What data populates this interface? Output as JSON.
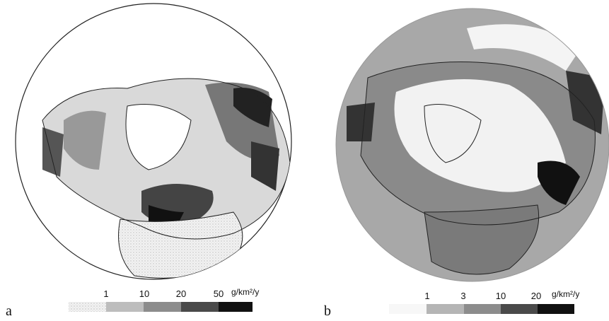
{
  "panels": [
    {
      "label": "a",
      "legend": {
        "ticks": [
          1,
          10,
          20,
          50
        ],
        "unit": "g/km²/y"
      }
    },
    {
      "label": "b",
      "legend": {
        "ticks": [
          1,
          3,
          10,
          20
        ],
        "unit": "g/km²/y"
      }
    }
  ]
}
